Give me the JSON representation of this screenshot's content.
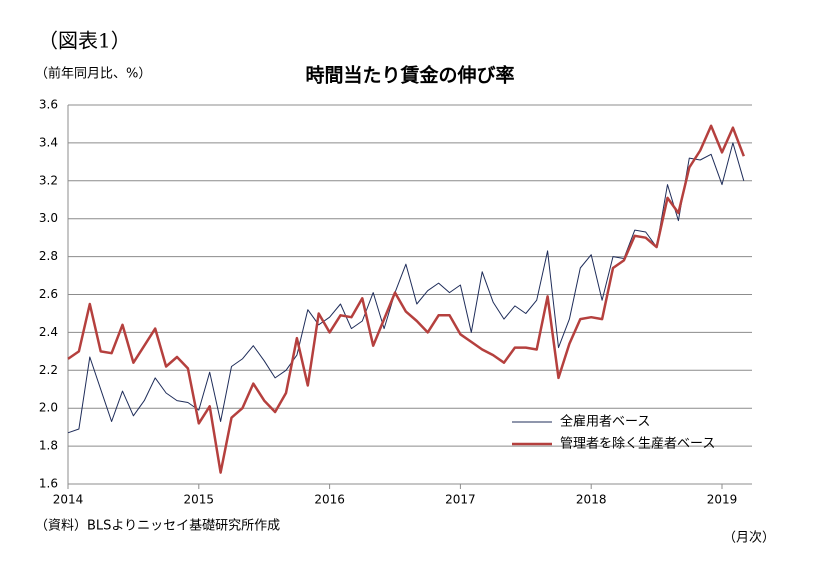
{
  "chart_data": {
    "type": "line",
    "label": "（図表1）",
    "title": "時間当たり賃金の伸び率",
    "y_label": "（前年同月比、%）",
    "x_label": "（月次）",
    "source": "（資料）BLSよりニッセイ基礎研究所作成",
    "categories": [
      "2014",
      null,
      null,
      null,
      null,
      null,
      null,
      null,
      null,
      null,
      null,
      null,
      "2015",
      null,
      null,
      null,
      null,
      null,
      null,
      null,
      null,
      null,
      null,
      null,
      "2016",
      null,
      null,
      null,
      null,
      null,
      null,
      null,
      null,
      null,
      null,
      null,
      "2017",
      null,
      null,
      null,
      null,
      null,
      null,
      null,
      null,
      null,
      null,
      null,
      "2018",
      null,
      null,
      null,
      null,
      null,
      null,
      null,
      null,
      null,
      null,
      null,
      "2019",
      null,
      null
    ],
    "series": [
      {
        "name": "全雇用者ベース",
        "color": "#1f2d5a",
        "width": 1,
        "values": [
          1.87,
          1.89,
          2.27,
          2.1,
          1.93,
          2.09,
          1.96,
          2.04,
          2.16,
          2.08,
          2.04,
          2.03,
          1.99,
          2.19,
          1.93,
          2.22,
          2.26,
          2.33,
          2.25,
          2.16,
          2.2,
          2.28,
          2.52,
          2.44,
          2.48,
          2.55,
          2.42,
          2.46,
          2.61,
          2.42,
          2.61,
          2.76,
          2.55,
          2.62,
          2.66,
          2.61,
          2.65,
          2.4,
          2.72,
          2.56,
          2.47,
          2.54,
          2.5,
          2.57,
          2.83,
          2.32,
          2.47,
          2.74,
          2.81,
          2.57,
          2.8,
          2.79,
          2.94,
          2.93,
          2.85,
          3.18,
          2.99,
          3.32,
          3.31,
          3.34,
          3.18,
          3.4,
          3.2
        ]
      },
      {
        "name": "管理者を除く生産者ベース",
        "color": "#b5403e",
        "width": 2.5,
        "values": [
          2.26,
          2.3,
          2.55,
          2.3,
          2.29,
          2.44,
          2.24,
          2.33,
          2.42,
          2.22,
          2.27,
          2.21,
          1.92,
          2.01,
          1.66,
          1.95,
          2.0,
          2.13,
          2.04,
          1.98,
          2.08,
          2.37,
          2.12,
          2.5,
          2.4,
          2.49,
          2.48,
          2.58,
          2.33,
          2.47,
          2.61,
          2.51,
          2.46,
          2.4,
          2.49,
          2.49,
          2.39,
          2.35,
          2.31,
          2.28,
          2.24,
          2.32,
          2.32,
          2.31,
          2.59,
          2.16,
          2.34,
          2.47,
          2.48,
          2.47,
          2.74,
          2.78,
          2.91,
          2.9,
          2.85,
          3.11,
          3.03,
          3.27,
          3.36,
          3.49,
          3.35,
          3.48,
          3.33
        ]
      }
    ],
    "ylim": [
      1.6,
      3.6
    ],
    "yticks": [
      {
        "value": 1.6,
        "label": "1.6"
      },
      {
        "value": 1.8,
        "label": "1.8"
      },
      {
        "value": 2.0,
        "label": "2.0"
      },
      {
        "value": 2.2,
        "label": "2.2"
      },
      {
        "value": 2.4,
        "label": "2.4"
      },
      {
        "value": 2.6,
        "label": "2.6"
      },
      {
        "value": 2.8,
        "label": "2.8"
      },
      {
        "value": 3.0,
        "label": "3.0"
      },
      {
        "value": 3.2,
        "label": "3.2"
      },
      {
        "value": 3.4,
        "label": "3.4"
      },
      {
        "value": 3.6,
        "label": "3.6"
      }
    ],
    "grid": true
  }
}
